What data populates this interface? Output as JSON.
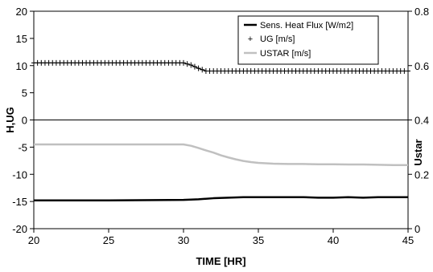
{
  "chart_data": {
    "type": "line",
    "xlabel": "TIME [HR]",
    "ylabel_left": "H,UG",
    "ylabel_right": "Ustar",
    "xlim": [
      20,
      45
    ],
    "ylim_left": [
      -20,
      20
    ],
    "ylim_right": [
      0,
      0.8
    ],
    "x_ticks": [
      "20",
      "25",
      "30",
      "35",
      "40",
      "45"
    ],
    "y_left_ticks": [
      "-20",
      "-15",
      "-10",
      "-5",
      "0",
      "5",
      "10",
      "15",
      "20"
    ],
    "y_right_ticks": [
      "0",
      "0.2",
      "0.4",
      "0.6",
      "0.8"
    ],
    "legend_position": "top-right",
    "legend": [
      {
        "label": "Sens. Heat Flux [W/m2]",
        "color": "#000000",
        "marker": "line"
      },
      {
        "label": "UG [m/s]",
        "color": "#000000",
        "marker": "+"
      },
      {
        "label": "USTAR [m/s]",
        "color": "#c0c0c0",
        "marker": "line"
      }
    ],
    "series": [
      {
        "name": "Sens. Heat Flux [W/m2]",
        "axis": "left",
        "color": "#000000",
        "x": [
          20,
          25,
          30,
          31,
          32,
          33,
          34,
          35,
          36,
          37,
          38,
          39,
          40,
          41,
          42,
          43,
          44,
          45
        ],
        "y": [
          -14.8,
          -14.8,
          -14.7,
          -14.6,
          -14.4,
          -14.3,
          -14.2,
          -14.2,
          -14.2,
          -14.2,
          -14.2,
          -14.3,
          -14.3,
          -14.2,
          -14.3,
          -14.2,
          -14.2,
          -14.2
        ]
      },
      {
        "name": "UG [m/s]",
        "axis": "left",
        "color": "#000000",
        "marker": "+",
        "x": [
          20,
          21,
          22,
          23,
          24,
          25,
          26,
          27,
          28,
          29,
          30,
          30.5,
          31,
          31.5,
          32,
          33,
          34,
          35,
          36,
          37,
          38,
          39,
          40,
          41,
          42,
          43,
          44,
          45
        ],
        "y": [
          10.5,
          10.5,
          10.5,
          10.5,
          10.5,
          10.5,
          10.5,
          10.5,
          10.5,
          10.5,
          10.5,
          10.1,
          9.5,
          9.0,
          9.0,
          9.0,
          9.0,
          9.0,
          9.0,
          9.0,
          9.0,
          9.0,
          9.0,
          9.0,
          9.0,
          9.0,
          9.0,
          9.0
        ]
      },
      {
        "name": "USTAR [m/s]",
        "axis": "right",
        "color": "#c0c0c0",
        "x": [
          20,
          22,
          24,
          26,
          28,
          30,
          30.5,
          31,
          31.5,
          32,
          32.5,
          33,
          33.5,
          34,
          34.5,
          35,
          36,
          37,
          38,
          39,
          40,
          41,
          42,
          43,
          44,
          45
        ],
        "y": [
          0.31,
          0.31,
          0.31,
          0.31,
          0.31,
          0.31,
          0.305,
          0.297,
          0.288,
          0.28,
          0.27,
          0.262,
          0.255,
          0.249,
          0.245,
          0.242,
          0.239,
          0.238,
          0.238,
          0.237,
          0.237,
          0.236,
          0.236,
          0.235,
          0.234,
          0.234
        ]
      }
    ]
  }
}
